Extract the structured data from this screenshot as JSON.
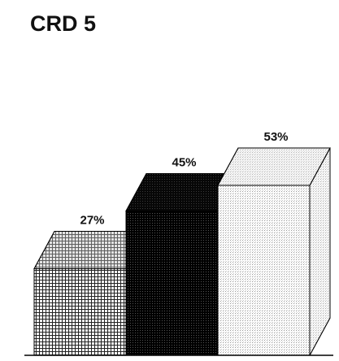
{
  "chart_data": {
    "type": "bar3d",
    "title": "CRD 5",
    "values": [
      27,
      45,
      53
    ],
    "value_labels": [
      "27%",
      "45%",
      "53%"
    ],
    "colors": [
      "#b8b8b8",
      "#111111",
      "#e4e4e4"
    ]
  }
}
